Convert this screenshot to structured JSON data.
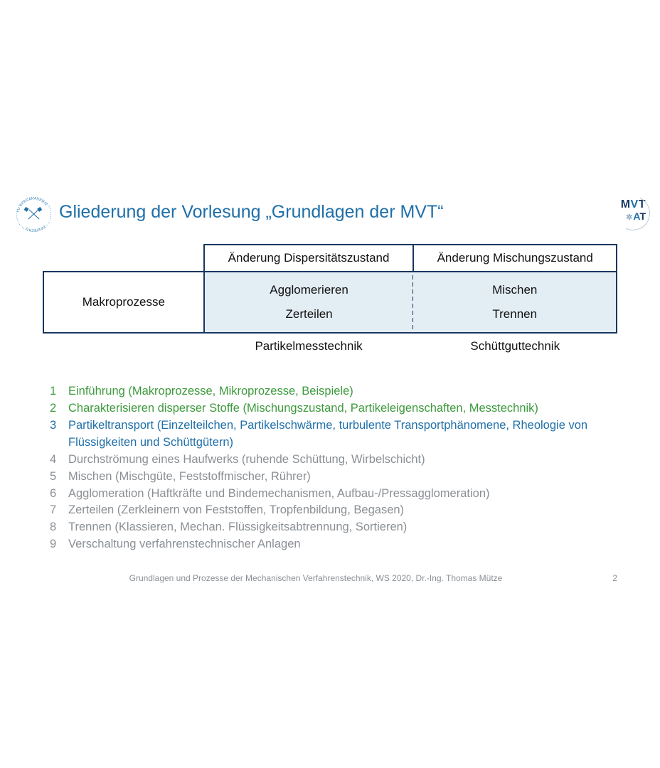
{
  "colors": {
    "title": "#1f6fa8",
    "table_border": "#18375f",
    "table_fill": "#e3edf4",
    "green": "#3c9a3c",
    "blue": "#1f6fa8",
    "grey": "#8a8f94",
    "background": "#ffffff"
  },
  "title": "Gliederung der Vorlesung „Grundlagen der MVT“",
  "logo_left": {
    "text_ring": "TU BERGAKADEMIE FREIBERG"
  },
  "logo_right": {
    "line1_m": "M",
    "line1_v": "V",
    "line1_t": "T",
    "line2_a": "A",
    "line2_t": "T"
  },
  "table": {
    "col_headers": [
      "Änderung Dispersitätszustand",
      "Änderung Mischungszustand"
    ],
    "row_header": "Makroprozesse",
    "cells": {
      "left": [
        "Agglomerieren",
        "Zerteilen"
      ],
      "right": [
        "Mischen",
        "Trennen"
      ]
    },
    "footers": [
      "Partikelmesstechnik",
      "Schüttguttechnik"
    ]
  },
  "outline": [
    {
      "n": "1",
      "text": "Einführung (Makroprozesse, Mikroprozesse, Beispiele)",
      "cls": "c-green"
    },
    {
      "n": "2",
      "text": "Charakterisieren disperser Stoffe (Mischungszustand, Partikeleigenschaften, Messtechnik)",
      "cls": "c-green"
    },
    {
      "n": "3",
      "text": "Partikeltransport (Einzelteilchen, Partikelschwärme, turbulente Transportphänomene, Rheologie von Flüssigkeiten und Schüttgütern)",
      "cls": "c-blue"
    },
    {
      "n": "4",
      "text": "Durchströmung eines Haufwerks (ruhende Schüttung, Wirbelschicht)",
      "cls": "c-grey"
    },
    {
      "n": "5",
      "text": "Mischen (Mischgüte, Feststoffmischer, Rührer)",
      "cls": "c-grey"
    },
    {
      "n": "6",
      "text": "Agglomeration (Haftkräfte und Bindemechanismen, Aufbau-/Pressagglomeration)",
      "cls": "c-grey"
    },
    {
      "n": "7",
      "text": "Zerteilen (Zerkleinern von Feststoffen, Tropfenbildung, Begasen)",
      "cls": "c-grey"
    },
    {
      "n": "8",
      "text": "Trennen (Klassieren, Mechan. Flüssigkeitsabtrennung, Sortieren)",
      "cls": "c-grey"
    },
    {
      "n": "9",
      "text": "Verschaltung verfahrenstechnischer Anlagen",
      "cls": "c-grey"
    }
  ],
  "footer": {
    "text": "Grundlagen und Prozesse der Mechanischen Verfahrenstechnik, WS 2020, Dr.-Ing. Thomas Mütze",
    "page": "2"
  }
}
